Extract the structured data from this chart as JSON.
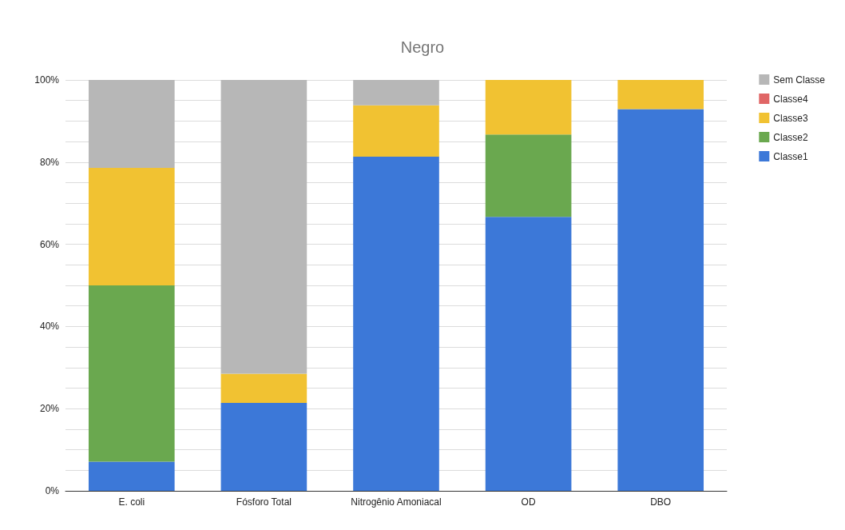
{
  "chart_data": {
    "type": "bar",
    "title": "Negro",
    "stacked": true,
    "grid": "y",
    "legend": "top right",
    "categories": [
      "E. coli",
      "Fósforo Total",
      "Nitrogênio Amoniacal",
      "OD",
      "DBO"
    ],
    "series": [
      {
        "name": "Classe1",
        "color": "#3c78d8",
        "values": [
          7.1,
          21.4,
          81.3,
          66.7,
          92.9
        ]
      },
      {
        "name": "Classe2",
        "color": "#6aa84f",
        "values": [
          42.9,
          0,
          0,
          20,
          0
        ]
      },
      {
        "name": "Classe3",
        "color": "#f1c232",
        "values": [
          28.6,
          7.1,
          12.5,
          13.3,
          7.1
        ]
      },
      {
        "name": "Classe4",
        "color": "#e06666",
        "values": [
          0,
          0,
          0,
          0,
          0
        ]
      },
      {
        "name": "Sem Classe",
        "color": "#b7b7b7",
        "values": [
          21.4,
          71.5,
          6.2,
          0,
          0
        ]
      }
    ],
    "ylim": [
      0,
      100
    ],
    "yticks": [
      {
        "value": 0,
        "label": "0%"
      },
      {
        "value": 5,
        "label": null
      },
      {
        "value": 10,
        "label": null
      },
      {
        "value": 15,
        "label": null
      },
      {
        "value": 20,
        "label": "20%"
      },
      {
        "value": 25,
        "label": null
      },
      {
        "value": 30,
        "label": null
      },
      {
        "value": 35,
        "label": null
      },
      {
        "value": 40,
        "label": "40%"
      },
      {
        "value": 45,
        "label": null
      },
      {
        "value": 50,
        "label": null
      },
      {
        "value": 55,
        "label": null
      },
      {
        "value": 60,
        "label": "60%"
      },
      {
        "value": 65,
        "label": null
      },
      {
        "value": 70,
        "label": null
      },
      {
        "value": 75,
        "label": null
      },
      {
        "value": 80,
        "label": "80%"
      },
      {
        "value": 85,
        "label": null
      },
      {
        "value": 90,
        "label": null
      },
      {
        "value": 95,
        "label": null
      },
      {
        "value": 100,
        "label": "100%"
      }
    ]
  }
}
